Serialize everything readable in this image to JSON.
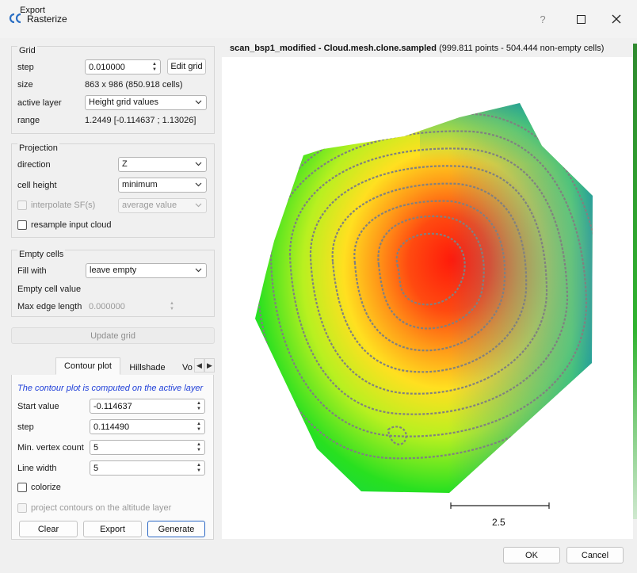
{
  "window": {
    "title": "Rasterize",
    "help_label": "?"
  },
  "grid": {
    "group_title": "Grid",
    "step_label": "step",
    "step_value": "0.010000",
    "edit_grid_label": "Edit grid",
    "size_label": "size",
    "size_value": "863 x 986 (850.918 cells)",
    "active_layer_label": "active layer",
    "active_layer_value": "Height grid values",
    "range_label": "range",
    "range_value": "1.2449 [-0.114637 ; 1.13026]"
  },
  "projection": {
    "group_title": "Projection",
    "direction_label": "direction",
    "direction_value": "Z",
    "cell_height_label": "cell height",
    "cell_height_value": "minimum",
    "interpolate_label": "interpolate SF(s)",
    "interpolate_value": "average value",
    "resample_label": "resample input cloud"
  },
  "empty_cells": {
    "group_title": "Empty cells",
    "fill_with_label": "Fill with",
    "fill_with_value": "leave empty",
    "empty_cell_value_label": "Empty cell value",
    "max_edge_length_label": "Max edge length",
    "max_edge_length_value": "0.000000"
  },
  "update_grid_label": "Update grid",
  "tabs": {
    "export": "Export",
    "contour_plot": "Contour plot",
    "hillshade": "Hillshade",
    "volume_partial": "Vo",
    "left_arrow": "◀",
    "right_arrow": "▶"
  },
  "contour": {
    "note": "The contour plot is computed on the active layer",
    "start_value_label": "Start value",
    "start_value": "-0.114637",
    "step_label": "step",
    "step_value": "0.114490",
    "min_vertex_label": "Min. vertex count",
    "min_vertex_value": "5",
    "line_width_label": "Line width",
    "line_width_value": "5",
    "colorize_label": "colorize",
    "project_label": "project contours on the altitude layer",
    "clear_label": "Clear",
    "export_label": "Export",
    "generate_label": "Generate"
  },
  "viewport": {
    "title_bold": "scan_bsp1_modified - Cloud.mesh.clone.sampled",
    "title_rest": " (999.811 points - 504.444 non-empty cells)",
    "scale_label": "2.5"
  },
  "footer": {
    "ok_label": "OK",
    "cancel_label": "Cancel"
  },
  "colors": {
    "accent": "#2b67c4",
    "note_blue": "#1f3fd8",
    "contour_line": "#808080"
  }
}
